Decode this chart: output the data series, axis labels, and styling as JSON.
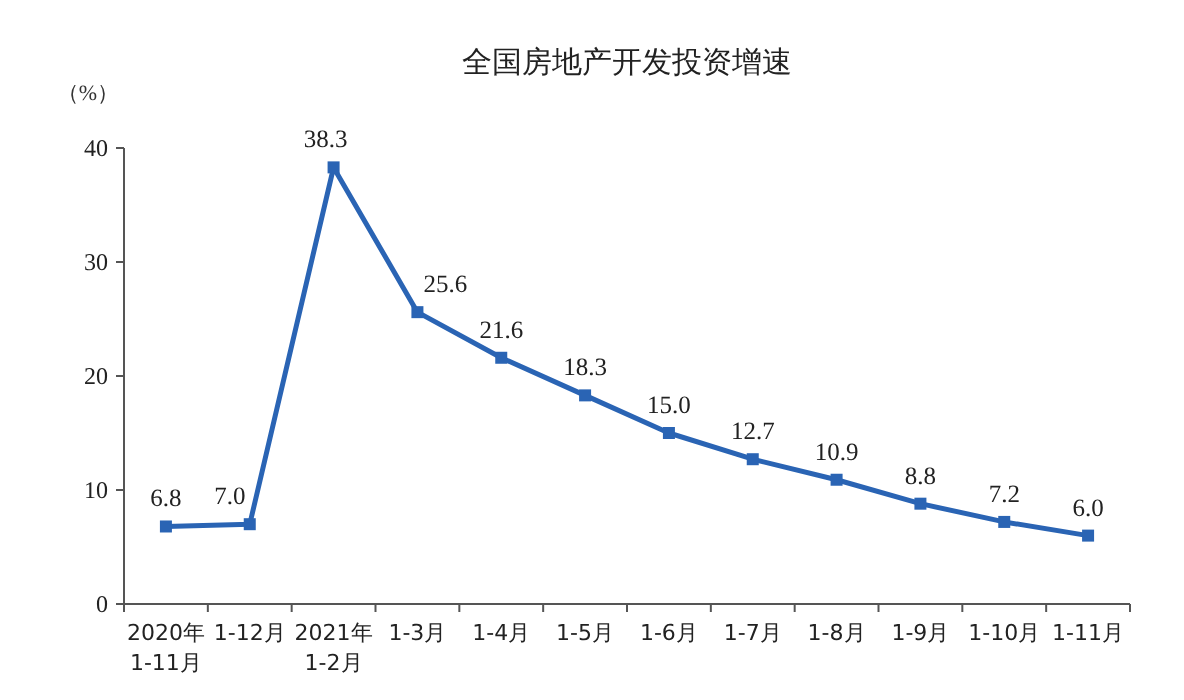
{
  "chart_data": {
    "type": "line",
    "title": "全国房地产开发投资增速",
    "ylabel": "（%）",
    "categories": [
      "2020年\n1-11月",
      "1-12月",
      "2021年\n1-2月",
      "1-3月",
      "1-4月",
      "1-5月",
      "1-6月",
      "1-7月",
      "1-8月",
      "1-9月",
      "1-10月",
      "1-11月"
    ],
    "series": [
      {
        "color": "#2a64b4",
        "values": [
          6.8,
          7.0,
          38.3,
          25.6,
          21.6,
          18.3,
          15.0,
          12.7,
          10.9,
          8.8,
          7.2,
          6.0
        ],
        "value_labels": [
          "6.8",
          "7.0",
          "38.3",
          "25.6",
          "21.6",
          "18.3",
          "15.0",
          "12.7",
          "10.9",
          "8.8",
          "7.2",
          "6.0"
        ]
      }
    ],
    "ylim": [
      0,
      40
    ],
    "yticks": [
      0,
      10,
      20,
      30,
      40
    ],
    "grid": false,
    "marker": "square",
    "line_style": "solid"
  }
}
